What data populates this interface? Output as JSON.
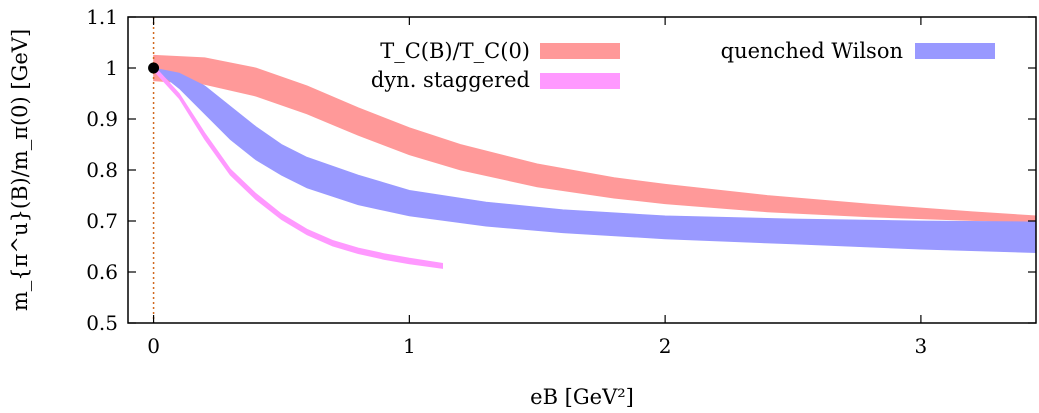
{
  "chart_data": {
    "type": "area",
    "title": "",
    "xlabel": "eB [GeV²]",
    "ylabel": "m_{π^u}(B)/m_π(0) [GeV]",
    "xlim": [
      -0.1,
      3.45
    ],
    "ylim": [
      0.5,
      1.1
    ],
    "xticks": [
      "0",
      "1",
      "2",
      "3"
    ],
    "xtick_values": [
      0,
      1,
      2,
      3
    ],
    "yticks": [
      "0.5",
      "0.6",
      "0.7",
      "0.8",
      "0.9",
      "1",
      "1.1"
    ],
    "ytick_values": [
      0.5,
      0.6,
      0.7,
      0.8,
      0.9,
      1.0,
      1.1
    ],
    "grid": false,
    "legend_position": "top",
    "reference_line": {
      "x": 0,
      "style": "dotted",
      "color": "#d2691e"
    },
    "reference_point": {
      "x": 0,
      "y": 1.0,
      "color": "#000000"
    },
    "series": [
      {
        "name": "T_C(B)/T_C(0)",
        "color": "#ff9999",
        "x": [
          0.0,
          0.2,
          0.4,
          0.6,
          0.8,
          1.0,
          1.2,
          1.5,
          1.8,
          2.0,
          2.4,
          2.8,
          3.2,
          3.45
        ],
        "lower": [
          0.975,
          0.968,
          0.945,
          0.91,
          0.868,
          0.83,
          0.8,
          0.767,
          0.745,
          0.734,
          0.718,
          0.708,
          0.701,
          0.697
        ],
        "upper": [
          1.025,
          1.02,
          1.0,
          0.965,
          0.922,
          0.883,
          0.85,
          0.812,
          0.785,
          0.772,
          0.75,
          0.733,
          0.718,
          0.71
        ]
      },
      {
        "name": "quenched Wilson",
        "color": "#9999ff",
        "x": [
          0.0,
          0.1,
          0.2,
          0.3,
          0.4,
          0.5,
          0.6,
          0.8,
          1.0,
          1.3,
          1.6,
          2.0,
          2.5,
          3.0,
          3.45
        ],
        "lower": [
          1.0,
          0.96,
          0.91,
          0.86,
          0.82,
          0.79,
          0.765,
          0.732,
          0.71,
          0.69,
          0.677,
          0.665,
          0.655,
          0.645,
          0.638
        ],
        "upper": [
          1.0,
          0.99,
          0.965,
          0.925,
          0.885,
          0.85,
          0.825,
          0.79,
          0.76,
          0.737,
          0.722,
          0.71,
          0.704,
          0.7,
          0.698
        ]
      },
      {
        "name": "dyn. staggered",
        "color": "#ff99ff",
        "x": [
          0.0,
          0.1,
          0.2,
          0.3,
          0.4,
          0.5,
          0.6,
          0.7,
          0.8,
          0.9,
          1.0,
          1.13
        ],
        "lower": [
          0.995,
          0.94,
          0.86,
          0.79,
          0.742,
          0.703,
          0.673,
          0.651,
          0.636,
          0.625,
          0.616,
          0.607
        ],
        "upper": [
          1.005,
          0.95,
          0.873,
          0.802,
          0.754,
          0.714,
          0.684,
          0.662,
          0.647,
          0.636,
          0.627,
          0.617
        ]
      }
    ]
  }
}
